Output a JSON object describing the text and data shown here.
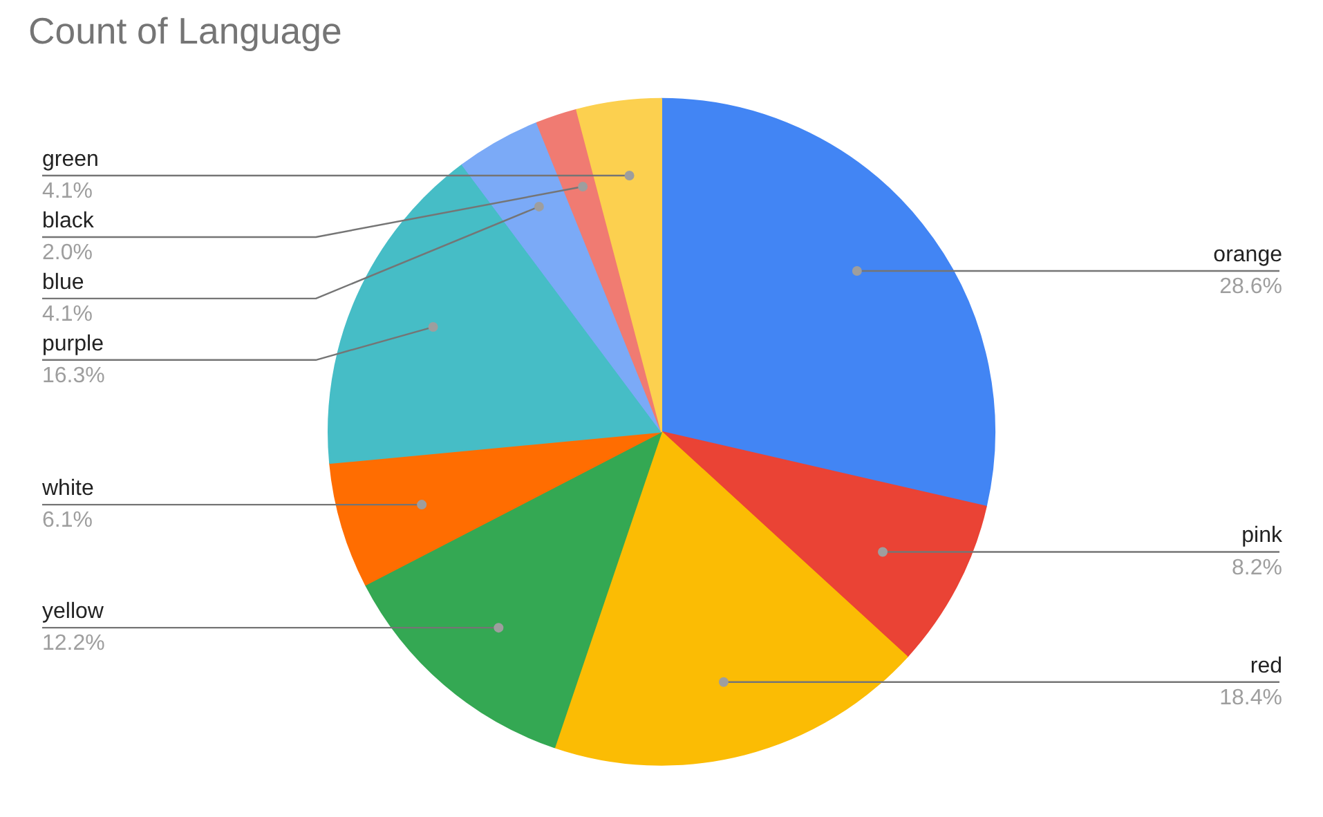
{
  "chart_data": {
    "type": "pie",
    "title": "Count of Language",
    "categories": [
      "orange",
      "pink",
      "red",
      "yellow",
      "white",
      "purple",
      "blue",
      "black",
      "green"
    ],
    "values": [
      28.6,
      8.2,
      18.4,
      12.2,
      6.1,
      16.3,
      4.1,
      2.0,
      4.1
    ],
    "value_labels": [
      "28.6%",
      "8.2%",
      "18.4%",
      "12.2%",
      "6.1%",
      "16.3%",
      "4.1%",
      "2.0%",
      "4.1%"
    ],
    "colors": [
      "#4285f4",
      "#ea4335",
      "#fbbc04",
      "#34a853",
      "#ff6d01",
      "#46bdc6",
      "#7baaf7",
      "#f07b72",
      "#fcd04f"
    ]
  }
}
